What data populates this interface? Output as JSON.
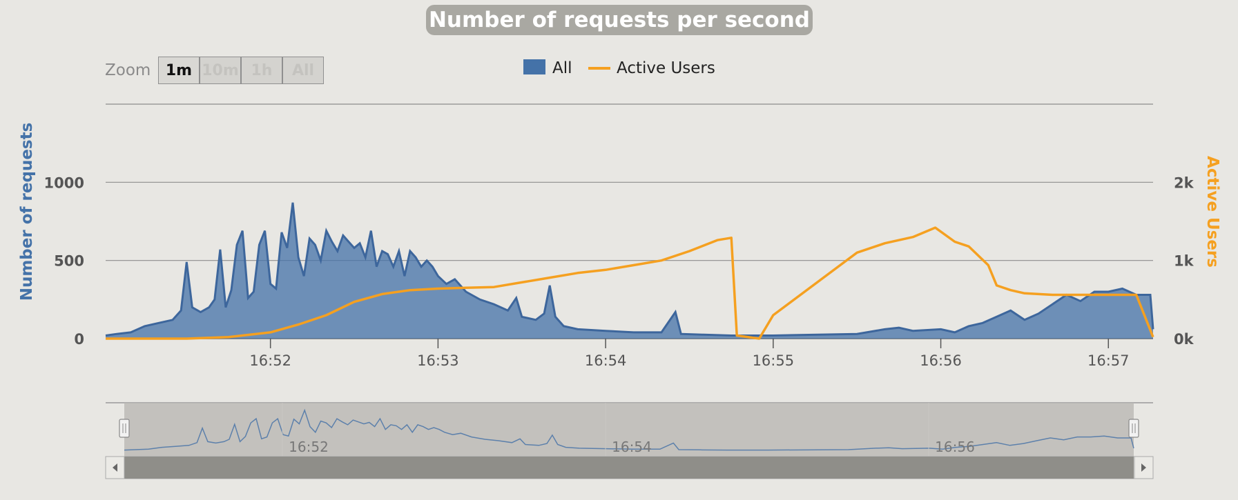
{
  "title": "Number of requests per second",
  "zoom": {
    "label": "Zoom",
    "buttons": [
      "1m",
      "10m",
      "1h",
      "All"
    ],
    "selected": "1m"
  },
  "legend": [
    {
      "name": "All",
      "color": "#4472a8"
    },
    {
      "name": "Active Users",
      "color": "#f5a020"
    }
  ],
  "navigator": {
    "labels": [
      "16:52",
      "16:54",
      "16:56"
    ]
  },
  "chart_data": {
    "type": "area",
    "ylabel": "Number of requests",
    "ylabel_right": "Active Users",
    "y_ticks": [
      "0",
      "500",
      "1000"
    ],
    "y_ticks_right": [
      "0k",
      "1k",
      "2k"
    ],
    "ylim": [
      0,
      1500
    ],
    "ylim_right": [
      0,
      3000
    ],
    "x_ticks": [
      "16:52",
      "16:53",
      "16:54",
      "16:55",
      "16:56",
      "16:57"
    ],
    "xlim": [
      "16:51:01",
      "16:57:16"
    ],
    "grid": true,
    "legend_position": "top-center",
    "series": [
      {
        "name": "All",
        "type": "area",
        "axis": "left",
        "color": "#4472a8",
        "points": [
          [
            "16:51:01",
            20
          ],
          [
            "16:51:05",
            30
          ],
          [
            "16:51:10",
            40
          ],
          [
            "16:51:15",
            80
          ],
          [
            "16:51:20",
            100
          ],
          [
            "16:51:25",
            120
          ],
          [
            "16:51:28",
            180
          ],
          [
            "16:51:30",
            490
          ],
          [
            "16:51:32",
            200
          ],
          [
            "16:51:35",
            170
          ],
          [
            "16:51:38",
            200
          ],
          [
            "16:51:40",
            250
          ],
          [
            "16:51:42",
            570
          ],
          [
            "16:51:44",
            200
          ],
          [
            "16:51:46",
            310
          ],
          [
            "16:51:48",
            600
          ],
          [
            "16:51:50",
            690
          ],
          [
            "16:51:52",
            260
          ],
          [
            "16:51:54",
            300
          ],
          [
            "16:51:56",
            600
          ],
          [
            "16:51:58",
            690
          ],
          [
            "16:52:00",
            350
          ],
          [
            "16:52:02",
            320
          ],
          [
            "16:52:04",
            680
          ],
          [
            "16:52:06",
            580
          ],
          [
            "16:52:08",
            870
          ],
          [
            "16:52:10",
            520
          ],
          [
            "16:52:12",
            400
          ],
          [
            "16:52:14",
            640
          ],
          [
            "16:52:16",
            600
          ],
          [
            "16:52:18",
            500
          ],
          [
            "16:52:20",
            690
          ],
          [
            "16:52:22",
            620
          ],
          [
            "16:52:24",
            560
          ],
          [
            "16:52:26",
            660
          ],
          [
            "16:52:28",
            620
          ],
          [
            "16:52:30",
            580
          ],
          [
            "16:52:32",
            610
          ],
          [
            "16:52:34",
            520
          ],
          [
            "16:52:36",
            690
          ],
          [
            "16:52:38",
            460
          ],
          [
            "16:52:40",
            560
          ],
          [
            "16:52:42",
            540
          ],
          [
            "16:52:44",
            460
          ],
          [
            "16:52:46",
            560
          ],
          [
            "16:52:48",
            400
          ],
          [
            "16:52:50",
            560
          ],
          [
            "16:52:52",
            520
          ],
          [
            "16:52:54",
            460
          ],
          [
            "16:52:56",
            500
          ],
          [
            "16:52:58",
            460
          ],
          [
            "16:53:00",
            400
          ],
          [
            "16:53:03",
            350
          ],
          [
            "16:53:06",
            380
          ],
          [
            "16:53:10",
            300
          ],
          [
            "16:53:15",
            250
          ],
          [
            "16:53:20",
            220
          ],
          [
            "16:53:25",
            180
          ],
          [
            "16:53:28",
            260
          ],
          [
            "16:53:30",
            140
          ],
          [
            "16:53:35",
            120
          ],
          [
            "16:53:38",
            160
          ],
          [
            "16:53:40",
            340
          ],
          [
            "16:53:42",
            140
          ],
          [
            "16:53:45",
            80
          ],
          [
            "16:53:50",
            60
          ],
          [
            "16:54:00",
            50
          ],
          [
            "16:54:10",
            40
          ],
          [
            "16:54:20",
            40
          ],
          [
            "16:54:25",
            170
          ],
          [
            "16:54:27",
            30
          ],
          [
            "16:54:35",
            25
          ],
          [
            "16:54:45",
            20
          ],
          [
            "16:55:00",
            20
          ],
          [
            "16:55:30",
            30
          ],
          [
            "16:55:40",
            60
          ],
          [
            "16:55:45",
            70
          ],
          [
            "16:55:50",
            50
          ],
          [
            "16:56:00",
            60
          ],
          [
            "16:56:05",
            40
          ],
          [
            "16:56:10",
            80
          ],
          [
            "16:56:15",
            100
          ],
          [
            "16:56:20",
            140
          ],
          [
            "16:56:25",
            180
          ],
          [
            "16:56:30",
            120
          ],
          [
            "16:56:35",
            160
          ],
          [
            "16:56:40",
            220
          ],
          [
            "16:56:45",
            280
          ],
          [
            "16:56:50",
            240
          ],
          [
            "16:56:55",
            300
          ],
          [
            "16:57:00",
            300
          ],
          [
            "16:57:05",
            320
          ],
          [
            "16:57:10",
            280
          ],
          [
            "16:57:15",
            280
          ],
          [
            "16:57:16",
            60
          ]
        ]
      },
      {
        "name": "Active Users",
        "type": "line",
        "axis": "right",
        "color": "#f5a020",
        "points": [
          [
            "16:51:01",
            0
          ],
          [
            "16:51:30",
            0
          ],
          [
            "16:51:45",
            20
          ],
          [
            "16:52:00",
            80
          ],
          [
            "16:52:10",
            180
          ],
          [
            "16:52:20",
            300
          ],
          [
            "16:52:30",
            470
          ],
          [
            "16:52:40",
            570
          ],
          [
            "16:52:50",
            620
          ],
          [
            "16:53:00",
            640
          ],
          [
            "16:53:10",
            650
          ],
          [
            "16:53:20",
            660
          ],
          [
            "16:53:30",
            720
          ],
          [
            "16:53:40",
            780
          ],
          [
            "16:53:50",
            840
          ],
          [
            "16:54:00",
            880
          ],
          [
            "16:54:10",
            940
          ],
          [
            "16:54:20",
            1000
          ],
          [
            "16:54:30",
            1120
          ],
          [
            "16:54:40",
            1260
          ],
          [
            "16:54:45",
            1290
          ],
          [
            "16:54:47",
            40
          ],
          [
            "16:54:55",
            0
          ],
          [
            "16:55:00",
            300
          ],
          [
            "16:55:30",
            1100
          ],
          [
            "16:55:40",
            1220
          ],
          [
            "16:55:50",
            1300
          ],
          [
            "16:55:58",
            1420
          ],
          [
            "16:56:05",
            1240
          ],
          [
            "16:56:10",
            1180
          ],
          [
            "16:56:17",
            940
          ],
          [
            "16:56:20",
            680
          ],
          [
            "16:56:25",
            620
          ],
          [
            "16:56:30",
            580
          ],
          [
            "16:56:40",
            560
          ],
          [
            "16:57:00",
            560
          ],
          [
            "16:57:10",
            560
          ],
          [
            "16:57:16",
            20
          ]
        ]
      }
    ]
  }
}
